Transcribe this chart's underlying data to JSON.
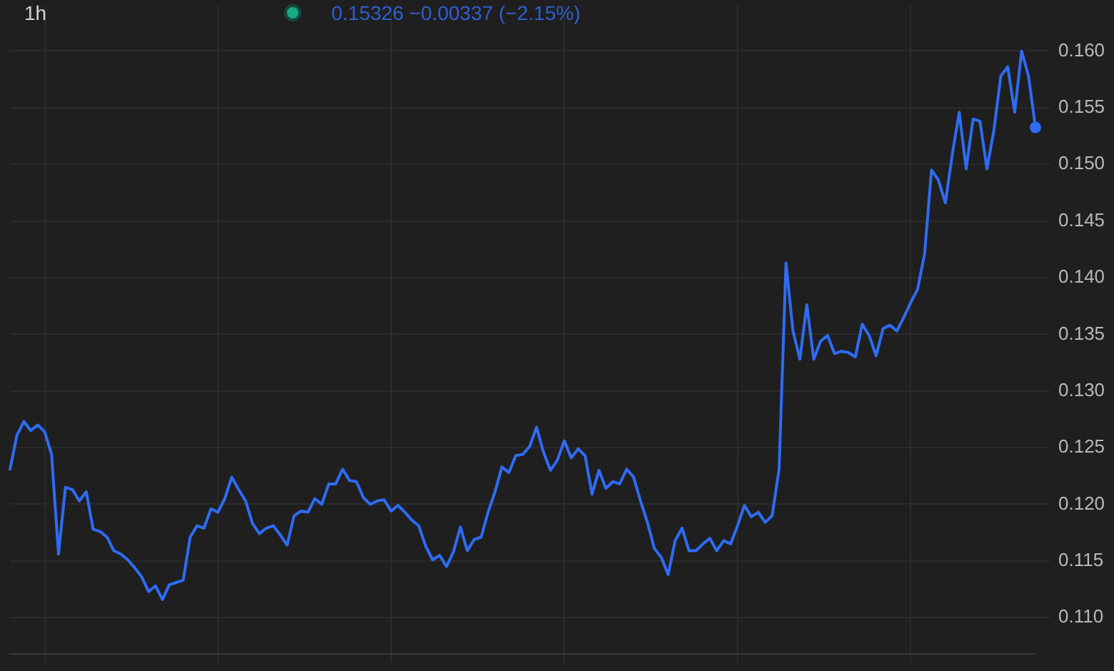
{
  "chart_data": {
    "type": "line",
    "title": "1h",
    "subtitle": "0.15326 −0.00337 (−2.15%)",
    "grid": true,
    "marker": "none",
    "tick_labels": "y",
    "categories": [
      null,
      null,
      null,
      null,
      null,
      null,
      null,
      null,
      null,
      null,
      null,
      null,
      null,
      null,
      null,
      null,
      null,
      null,
      null,
      null,
      null,
      null,
      null,
      null,
      null,
      null,
      null,
      null,
      null,
      null,
      null,
      null,
      null,
      null,
      null,
      null,
      null,
      null,
      null,
      null,
      null,
      null,
      null,
      null,
      null,
      null,
      null,
      null,
      null,
      null,
      null,
      null,
      null,
      null,
      null,
      null,
      null,
      null,
      null,
      null,
      null,
      null,
      null,
      null,
      null,
      null,
      null,
      null,
      null,
      null,
      null,
      null,
      null,
      null,
      null,
      null,
      null,
      null,
      null,
      null,
      null,
      null,
      null,
      null,
      null,
      null,
      null,
      null,
      null,
      null,
      null,
      null,
      null,
      null,
      null,
      null,
      null,
      null,
      null,
      null,
      null,
      null,
      null,
      null,
      null,
      null,
      null,
      null,
      null,
      null,
      null,
      null,
      null,
      null,
      null,
      null,
      null,
      null,
      null,
      null,
      null,
      null,
      null,
      null,
      null,
      null,
      null,
      null,
      null,
      null,
      null,
      null,
      null,
      null,
      null,
      null,
      null,
      null,
      null,
      null,
      null,
      null,
      null,
      null,
      null,
      null,
      null,
      null,
      null
    ],
    "series": [
      {
        "color": "#2e6cf6",
        "values": [
          0.1231,
          0.1261,
          0.1273,
          0.1265,
          0.127,
          0.1264,
          0.1244,
          0.1156,
          0.1215,
          0.1213,
          0.1203,
          0.1211,
          0.1178,
          0.1176,
          0.1171,
          0.1159,
          0.1156,
          0.1151,
          0.1144,
          0.1136,
          0.1123,
          0.1128,
          0.1116,
          0.1129,
          0.1131,
          0.1133,
          0.1171,
          0.1181,
          0.1179,
          0.1196,
          0.1193,
          0.1205,
          0.1224,
          0.1213,
          0.1203,
          0.1183,
          0.1174,
          0.1179,
          0.1181,
          0.1173,
          0.1164,
          0.119,
          0.1194,
          0.1193,
          0.1205,
          0.12,
          0.1218,
          0.1218,
          0.1231,
          0.1221,
          0.122,
          0.1206,
          0.12,
          0.1203,
          0.1204,
          0.1194,
          0.1199,
          0.1193,
          0.1186,
          0.1181,
          0.1163,
          0.1151,
          0.1155,
          0.1145,
          0.1158,
          0.118,
          0.1159,
          0.1169,
          0.1171,
          0.1193,
          0.1211,
          0.1233,
          0.1228,
          0.1243,
          0.1244,
          0.1251,
          0.1268,
          0.1246,
          0.123,
          0.1239,
          0.1256,
          0.1241,
          0.1249,
          0.1243,
          0.1209,
          0.123,
          0.1214,
          0.122,
          0.1218,
          0.1231,
          0.1224,
          0.1203,
          0.1184,
          0.1161,
          0.1153,
          0.1138,
          0.1168,
          0.1179,
          0.1159,
          0.1159,
          0.1165,
          0.117,
          0.1159,
          0.1168,
          0.1165,
          0.1181,
          0.1199,
          0.1189,
          0.1193,
          0.1184,
          0.119,
          0.1231,
          0.1413,
          0.1353,
          0.1328,
          0.1376,
          0.1328,
          0.1344,
          0.1349,
          0.1333,
          0.1335,
          0.1334,
          0.133,
          0.1359,
          0.1349,
          0.1331,
          0.1355,
          0.1358,
          0.1353,
          0.1365,
          0.1378,
          0.139,
          0.1421,
          0.1495,
          0.1486,
          0.1466,
          0.1509,
          0.1546,
          0.1496,
          0.154,
          0.1538,
          0.1496,
          0.153,
          0.1578,
          0.1586,
          0.1546,
          0.16,
          0.1578,
          0.15326
        ]
      },
      {
        "type": "scatter",
        "marker": "circle",
        "color": "#2e6cf6",
        "values": [
          null,
          null,
          null,
          null,
          null,
          null,
          null,
          null,
          null,
          null,
          null,
          null,
          null,
          null,
          null,
          null,
          null,
          null,
          null,
          null,
          null,
          null,
          null,
          null,
          null,
          null,
          null,
          null,
          null,
          null,
          null,
          null,
          null,
          null,
          null,
          null,
          null,
          null,
          null,
          null,
          null,
          null,
          null,
          null,
          null,
          null,
          null,
          null,
          null,
          null,
          null,
          null,
          null,
          null,
          null,
          null,
          null,
          null,
          null,
          null,
          null,
          null,
          null,
          null,
          null,
          null,
          null,
          null,
          null,
          null,
          null,
          null,
          null,
          null,
          null,
          null,
          null,
          null,
          null,
          null,
          null,
          null,
          null,
          null,
          null,
          null,
          null,
          null,
          null,
          null,
          null,
          null,
          null,
          null,
          null,
          null,
          null,
          null,
          null,
          null,
          null,
          null,
          null,
          null,
          null,
          null,
          null,
          null,
          null,
          null,
          null,
          null,
          null,
          null,
          null,
          null,
          null,
          null,
          null,
          null,
          null,
          null,
          null,
          null,
          null,
          null,
          null,
          null,
          null,
          null,
          null,
          null,
          null,
          null,
          null,
          null,
          null,
          null,
          null,
          null,
          null,
          null,
          null,
          null,
          null,
          null,
          null,
          null,
          0.15326
        ]
      }
    ],
    "ylim": [
      0.1068,
      0.164
    ],
    "yticks": [
      {
        "value": 0.11,
        "label": "0.110"
      },
      {
        "value": 0.115,
        "label": "0.115"
      },
      {
        "value": 0.12,
        "label": "0.120"
      },
      {
        "value": 0.125,
        "label": "0.125"
      },
      {
        "value": 0.13,
        "label": "0.130"
      },
      {
        "value": 0.135,
        "label": "0.135"
      },
      {
        "value": 0.14,
        "label": "0.140"
      },
      {
        "value": 0.145,
        "label": "0.145"
      },
      {
        "value": 0.15,
        "label": "0.150"
      },
      {
        "value": 0.155,
        "label": "0.155"
      },
      {
        "value": 0.16,
        "label": "0.160"
      }
    ]
  }
}
